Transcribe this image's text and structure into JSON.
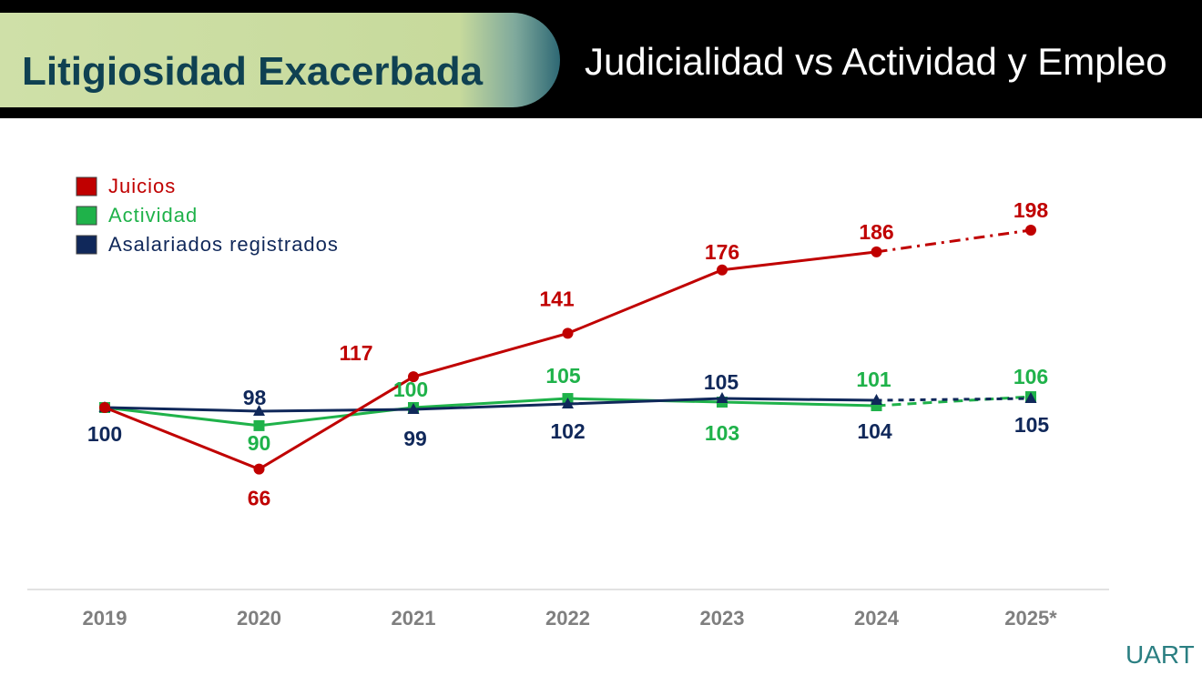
{
  "header": {
    "left_title": "Litigiosidad Exacerbada",
    "right_title": "Judicialidad vs Actividad y Empleo"
  },
  "brand": "UART",
  "colors": {
    "juicios": "#c00000",
    "actividad": "#1fb24a",
    "asalariados": "#10285a",
    "axis_text": "#7f7f7f"
  },
  "chart_data": {
    "type": "line",
    "categories": [
      "2019",
      "2020",
      "2021",
      "2022",
      "2023",
      "2024",
      "2025*"
    ],
    "projected_from_index": 5,
    "legend_position": "top-left",
    "grid": false,
    "ylim": [
      50,
      210
    ],
    "series": [
      {
        "key": "juicios",
        "name": "Juicios",
        "marker": "circle",
        "values": [
          100,
          66,
          117,
          141,
          176,
          186,
          198
        ],
        "labels": [
          "",
          "66",
          "117",
          "141",
          "176",
          "186",
          "198"
        ]
      },
      {
        "key": "actividad",
        "name": "Actividad",
        "marker": "square",
        "values": [
          100,
          90,
          100,
          105,
          103,
          101,
          106
        ],
        "labels": [
          "",
          "90",
          "100",
          "105",
          "103",
          "101",
          "106"
        ]
      },
      {
        "key": "asalariados",
        "name": "Asalariados registrados",
        "marker": "triangle",
        "values": [
          100,
          98,
          99,
          102,
          105,
          104,
          105
        ],
        "labels": [
          "100",
          "98",
          "99",
          "102",
          "105",
          "104",
          "105"
        ]
      }
    ]
  }
}
